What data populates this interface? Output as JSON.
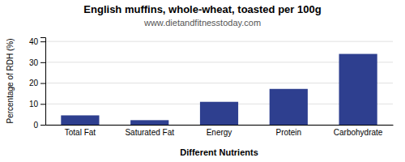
{
  "chart_data": {
    "type": "bar",
    "title": "English muffins, whole-wheat, toasted per 100g",
    "subtitle": "www.dietandfitnesstoday.com",
    "categories": [
      "Total Fat",
      "Saturated Fat",
      "Energy",
      "Protein",
      "Carbohydrate"
    ],
    "values": [
      4.5,
      2.2,
      11.0,
      17.2,
      34.0
    ],
    "color": "#2e3f8f",
    "xlabel": "Different Nutrients",
    "ylabel": "Percentage of RDH (%)",
    "ylim": [
      0,
      42
    ],
    "yticks": [
      0,
      10,
      20,
      30,
      40
    ],
    "grid": true
  }
}
